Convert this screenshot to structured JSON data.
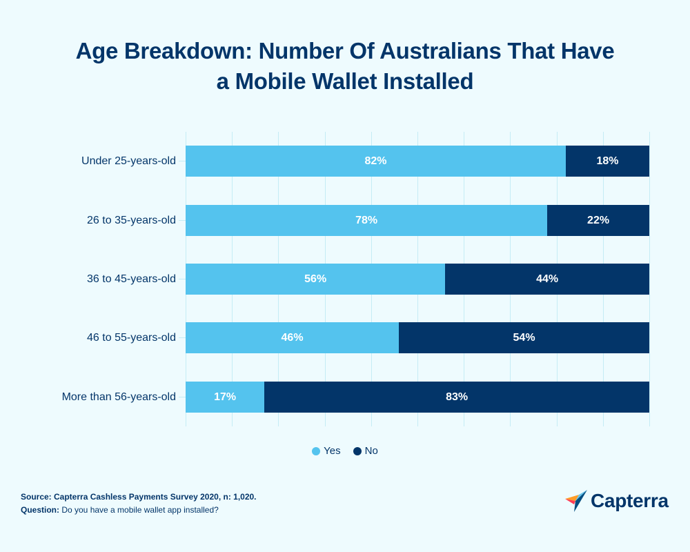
{
  "title": "Age Breakdown: Number Of Australians That Have a Mobile Wallet Installed",
  "title_lines": [
    "Age Breakdown: Number Of Australians That Have",
    "a Mobile Wallet Installed"
  ],
  "colors": {
    "yes": "#54c3ee",
    "no": "#033569",
    "background": "#eefbfe",
    "text": "#033569"
  },
  "legend": [
    {
      "label": "Yes",
      "color": "#54c3ee"
    },
    {
      "label": "No",
      "color": "#033569"
    }
  ],
  "rows": [
    {
      "label": "Under 25-years-old",
      "yes": 82,
      "no": 18,
      "yes_label": "82%",
      "no_label": "18%"
    },
    {
      "label": "26 to 35-years-old",
      "yes": 78,
      "no": 22,
      "yes_label": "78%",
      "no_label": "22%"
    },
    {
      "label": "36 to 45-years-old",
      "yes": 56,
      "no": 44,
      "yes_label": "56%",
      "no_label": "44%"
    },
    {
      "label": "46 to 55-years-old",
      "yes": 46,
      "no": 54,
      "yes_label": "46%",
      "no_label": "54%"
    },
    {
      "label": "More than 56-years-old",
      "yes": 17,
      "no": 83,
      "yes_label": "17%",
      "no_label": "83%"
    }
  ],
  "footer": {
    "source_label": "Source: Capterra Cashless Payments Survey 2020, n: 1,020.",
    "question_label": "Question:",
    "question_text": " Do you have a mobile wallet app installed?"
  },
  "logo": {
    "text": "Capterra",
    "icon": "capterra-arrow-icon"
  },
  "chart_data": {
    "type": "bar",
    "orientation": "horizontal",
    "stacked": true,
    "title": "Age Breakdown: Number Of Australians That Have a Mobile Wallet Installed",
    "categories": [
      "Under 25-years-old",
      "26 to 35-years-old",
      "36 to 45-years-old",
      "46 to 55-years-old",
      "More than 56-years-old"
    ],
    "series": [
      {
        "name": "Yes",
        "color": "#54c3ee",
        "values": [
          82,
          78,
          56,
          46,
          17
        ]
      },
      {
        "name": "No",
        "color": "#033569",
        "values": [
          18,
          22,
          44,
          54,
          83
        ]
      }
    ],
    "xlabel": "",
    "ylabel": "",
    "xlim": [
      0,
      100
    ],
    "unit": "%",
    "grid": true,
    "grid_step": 10,
    "legend_position": "bottom",
    "annotations": [
      "Source: Capterra Cashless Payments Survey 2020, n: 1,020.",
      "Question: Do you have a mobile wallet app installed?"
    ]
  }
}
